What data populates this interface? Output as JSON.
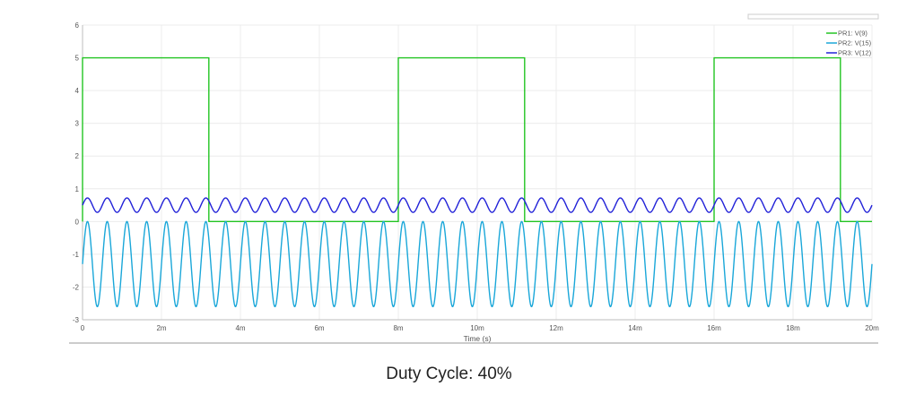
{
  "chart_data": {
    "type": "line",
    "xlabel": "Time (s)",
    "ylabel": "",
    "xlim": [
      0,
      0.02
    ],
    "ylim": [
      -3,
      6
    ],
    "x_ticks": [
      "0",
      "2m",
      "4m",
      "6m",
      "8m",
      "10m",
      "12m",
      "14m",
      "16m",
      "18m",
      "20m"
    ],
    "y_ticks": [
      "6",
      "5",
      "4",
      "3",
      "2",
      "1",
      "0",
      "-1",
      "-2",
      "-3"
    ],
    "grid": true,
    "legend_position": "top-right",
    "series": [
      {
        "name": "PR1: V(9)",
        "color": "#22c422",
        "x": [
          0,
          0,
          0.0032,
          0.0032,
          0.008,
          0.008,
          0.0112,
          0.0112,
          0.016,
          0.016,
          0.0192,
          0.0192,
          0.02
        ],
        "values": [
          0,
          5,
          5,
          0,
          0,
          5,
          5,
          0,
          0,
          5,
          5,
          0,
          0
        ]
      },
      {
        "name": "PR2: V(15)",
        "color": "#1aa7d9",
        "waveform": "sine",
        "frequency_hz": 2000,
        "offset": -1.3,
        "amplitude": 1.3,
        "x_range": [
          0,
          0.02
        ]
      },
      {
        "name": "PR3: V(12)",
        "color": "#2323d8",
        "waveform": "sine",
        "frequency_hz": 2000,
        "offset": 0.5,
        "amplitude": 0.22,
        "x_range": [
          0,
          0.02
        ]
      }
    ]
  },
  "caption": "Duty Cycle: 40%"
}
